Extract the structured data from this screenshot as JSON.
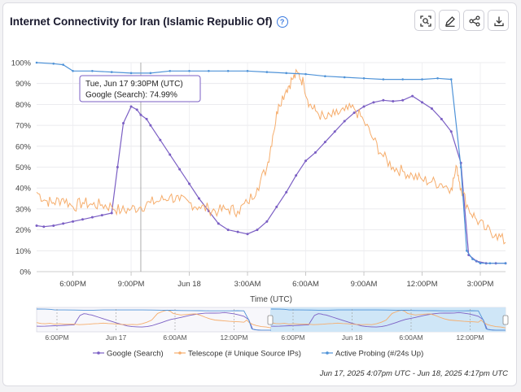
{
  "title": "Internet Connectivity for Iran (Islamic Republic Of)",
  "help_icon": "question-circle-icon",
  "toolbar": [
    {
      "icon": "zoom-select-icon"
    },
    {
      "icon": "edit-pencil-icon"
    },
    {
      "icon": "share-icon"
    },
    {
      "icon": "download-icon"
    }
  ],
  "tooltip": {
    "time": "Tue, Jun 17 9:30PM (UTC)",
    "value": "Google (Search): 74.99%"
  },
  "footer": "Jun 17, 2025 4:07pm UTC - Jun 18, 2025 4:17pm UTC",
  "colors": {
    "google": "#7b5fc4",
    "telescope": "#f6ad6c",
    "probing": "#4f93d8",
    "navigator_selection": "#cfe6f7"
  },
  "chart_data": {
    "type": "line",
    "title": "Internet Connectivity for Iran (Islamic Republic Of)",
    "xlabel": "Time (UTC)",
    "ylabel": "",
    "x_unit": "hours after Jun 17 4:00PM UTC",
    "xlim": [
      0.13,
      24.3
    ],
    "ylim": [
      0,
      100
    ],
    "y_ticks": [
      "0%",
      "10%",
      "20%",
      "30%",
      "40%",
      "50%",
      "60%",
      "70%",
      "80%",
      "90%",
      "100%"
    ],
    "x_ticks": [
      {
        "x": 2,
        "label": "6:00PM"
      },
      {
        "x": 5,
        "label": "9:00PM"
      },
      {
        "x": 8,
        "label": "Jun 18"
      },
      {
        "x": 11,
        "label": "3:00AM"
      },
      {
        "x": 14,
        "label": "6:00AM"
      },
      {
        "x": 17,
        "label": "9:00AM"
      },
      {
        "x": 20,
        "label": "12:00PM"
      },
      {
        "x": 23,
        "label": "3:00PM"
      }
    ],
    "crosshair_x": 5.5,
    "legend_position": "bottom",
    "series": [
      {
        "name": "Google (Search)",
        "color": "#7b5fc4",
        "points": [
          [
            0.13,
            22
          ],
          [
            0.5,
            21.5
          ],
          [
            1.0,
            22
          ],
          [
            1.5,
            23
          ],
          [
            2.0,
            24
          ],
          [
            2.5,
            25
          ],
          [
            3.0,
            26
          ],
          [
            3.5,
            27
          ],
          [
            4.0,
            28
          ],
          [
            4.3,
            50
          ],
          [
            4.6,
            71
          ],
          [
            5.0,
            79
          ],
          [
            5.3,
            77.5
          ],
          [
            5.5,
            75
          ],
          [
            5.8,
            73
          ],
          [
            6.0,
            70
          ],
          [
            6.5,
            63
          ],
          [
            7.0,
            56
          ],
          [
            7.5,
            49
          ],
          [
            8.0,
            42
          ],
          [
            8.5,
            35
          ],
          [
            9.0,
            29
          ],
          [
            9.5,
            23
          ],
          [
            10.0,
            20
          ],
          [
            10.5,
            19
          ],
          [
            11.0,
            18
          ],
          [
            11.5,
            20
          ],
          [
            12.0,
            24
          ],
          [
            12.5,
            31
          ],
          [
            13.0,
            38
          ],
          [
            13.5,
            46
          ],
          [
            14.0,
            53
          ],
          [
            14.5,
            57
          ],
          [
            15.0,
            62
          ],
          [
            15.5,
            67
          ],
          [
            16.0,
            72
          ],
          [
            16.5,
            76
          ],
          [
            17.0,
            79
          ],
          [
            17.5,
            81
          ],
          [
            18.0,
            82
          ],
          [
            18.5,
            81.5
          ],
          [
            19.0,
            82
          ],
          [
            19.5,
            84
          ],
          [
            20.0,
            81
          ],
          [
            20.5,
            78
          ],
          [
            21.0,
            73
          ],
          [
            21.5,
            67
          ],
          [
            22.0,
            52
          ],
          [
            22.4,
            8
          ],
          [
            22.8,
            5
          ],
          [
            23.3,
            4
          ],
          [
            23.8,
            4
          ],
          [
            24.3,
            4
          ]
        ]
      },
      {
        "name": "Telescope (# Unique Source IPs)",
        "color": "#f6ad6c",
        "points": [
          [
            0.13,
            38
          ],
          [
            0.6,
            34
          ],
          [
            1.0,
            33
          ],
          [
            1.5,
            35
          ],
          [
            2.0,
            31
          ],
          [
            2.5,
            33
          ],
          [
            3.0,
            32
          ],
          [
            3.5,
            32
          ],
          [
            4.0,
            31
          ],
          [
            4.5,
            29
          ],
          [
            5.0,
            30
          ],
          [
            5.5,
            31
          ],
          [
            6.0,
            33
          ],
          [
            6.5,
            34
          ],
          [
            7.0,
            36
          ],
          [
            7.5,
            34
          ],
          [
            8.0,
            33
          ],
          [
            8.5,
            31
          ],
          [
            9.0,
            30
          ],
          [
            9.5,
            29
          ],
          [
            10.0,
            30
          ],
          [
            10.5,
            29
          ],
          [
            11.0,
            33
          ],
          [
            11.5,
            40
          ],
          [
            12.0,
            50
          ],
          [
            12.3,
            65
          ],
          [
            12.6,
            80
          ],
          [
            13.0,
            87
          ],
          [
            13.3,
            92
          ],
          [
            13.6,
            95
          ],
          [
            13.9,
            90
          ],
          [
            14.2,
            80
          ],
          [
            14.5,
            77
          ],
          [
            15.0,
            73
          ],
          [
            15.5,
            75
          ],
          [
            16.0,
            77
          ],
          [
            16.5,
            78
          ],
          [
            17.0,
            72
          ],
          [
            17.5,
            63
          ],
          [
            18.0,
            55
          ],
          [
            18.5,
            50
          ],
          [
            19.0,
            48
          ],
          [
            19.5,
            46
          ],
          [
            20.0,
            44
          ],
          [
            20.5,
            43
          ],
          [
            21.0,
            42
          ],
          [
            21.5,
            40
          ],
          [
            21.8,
            50
          ],
          [
            22.0,
            40
          ],
          [
            22.4,
            30
          ],
          [
            22.8,
            25
          ],
          [
            23.3,
            20
          ],
          [
            23.8,
            18
          ],
          [
            24.3,
            14
          ]
        ]
      },
      {
        "name": "Active Probing (#/24s Up)",
        "color": "#4f93d8",
        "points": [
          [
            0.13,
            100
          ],
          [
            1.0,
            99.5
          ],
          [
            1.5,
            99
          ],
          [
            2.0,
            96
          ],
          [
            3.0,
            96
          ],
          [
            4.0,
            95.5
          ],
          [
            5.0,
            95
          ],
          [
            6.0,
            95
          ],
          [
            7.0,
            96
          ],
          [
            8.0,
            96
          ],
          [
            9.0,
            96
          ],
          [
            10.0,
            96
          ],
          [
            11.0,
            96
          ],
          [
            12.0,
            95.5
          ],
          [
            13.0,
            95
          ],
          [
            14.0,
            94.5
          ],
          [
            15.0,
            93.5
          ],
          [
            16.0,
            93
          ],
          [
            17.0,
            92.5
          ],
          [
            18.0,
            92
          ],
          [
            19.0,
            92
          ],
          [
            20.0,
            92
          ],
          [
            20.8,
            92.5
          ],
          [
            21.5,
            92
          ],
          [
            22.0,
            50
          ],
          [
            22.3,
            10
          ],
          [
            22.6,
            6
          ],
          [
            23.0,
            4
          ],
          [
            23.5,
            4
          ],
          [
            24.3,
            4
          ]
        ]
      }
    ]
  },
  "navigator": {
    "ticks": [
      "6:00PM",
      "Jun 17",
      "6:00AM",
      "12:00PM",
      "6:00PM",
      "Jun 18",
      "6:00AM",
      "12:00PM"
    ]
  }
}
